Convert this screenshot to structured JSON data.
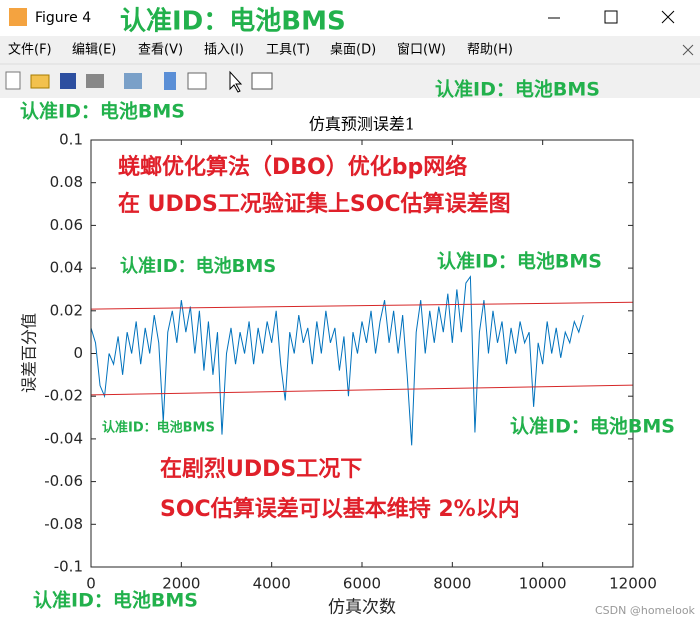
{
  "window": {
    "title": "Figure 4",
    "menus": [
      "文件(F)",
      "编辑(E)",
      "查看(V)",
      "插入(I)",
      "工具(T)",
      "桌面(D)",
      "窗口(W)",
      "帮助(H)"
    ],
    "credit": "CSDN @homelook"
  },
  "watermarks": [
    "认准ID：电池BMS",
    "认准ID：电池BMS",
    "认准ID：电池BMS",
    "认准ID：电池BMS",
    "认准ID：电池BMS",
    "认准ID：电池BMS",
    "认准ID：电池BMS",
    "认准ID：电池BMS"
  ],
  "chart_data": {
    "type": "line",
    "title": "仿真预测误差1",
    "xlabel": "仿真次数",
    "ylabel": "误差百分值",
    "annotations": [
      "蜣螂优化算法（DBO）优化bp网络",
      "在 UDDS工况验证集上SOC估算误差图",
      "在剧烈UDDS工况下",
      "SOC估算误差可以基本维持 2%以内"
    ],
    "xlim": [
      0,
      12000
    ],
    "ylim": [
      -0.1,
      0.1
    ],
    "xticks": [
      0,
      2000,
      4000,
      6000,
      8000,
      10000,
      12000
    ],
    "yticks": [
      -0.1,
      -0.08,
      -0.06,
      -0.04,
      -0.02,
      0,
      0.02,
      0.04,
      0.06,
      0.08,
      0.1
    ],
    "series": [
      {
        "color": "#0072bd",
        "x": [
          0,
          100,
          200,
          300,
          400,
          500,
          600,
          700,
          800,
          900,
          1000,
          1100,
          1200,
          1300,
          1400,
          1500,
          1600,
          1700,
          1800,
          1900,
          2000,
          2100,
          2200,
          2300,
          2400,
          2500,
          2600,
          2700,
          2800,
          2900,
          3000,
          3100,
          3200,
          3300,
          3400,
          3500,
          3600,
          3700,
          3800,
          3900,
          4000,
          4100,
          4200,
          4300,
          4400,
          4500,
          4600,
          4700,
          4800,
          4900,
          5000,
          5100,
          5200,
          5300,
          5400,
          5500,
          5600,
          5700,
          5800,
          5900,
          6000,
          6100,
          6200,
          6300,
          6400,
          6500,
          6600,
          6700,
          6800,
          6900,
          7000,
          7100,
          7200,
          7300,
          7400,
          7500,
          7600,
          7700,
          7800,
          7900,
          8000,
          8100,
          8200,
          8300,
          8400,
          8500,
          8600,
          8700,
          8800,
          8900,
          9000,
          9100,
          9200,
          9300,
          9400,
          9500,
          9600,
          9700,
          9800,
          9900,
          10000,
          10100,
          10200,
          10300,
          10400,
          10500,
          10600,
          10700,
          10800,
          10900
        ],
        "values": [
          0.012,
          0.005,
          -0.015,
          -0.02,
          0.0,
          -0.005,
          0.008,
          -0.01,
          0.01,
          0.0,
          0.015,
          -0.005,
          0.012,
          0.0,
          0.018,
          0.005,
          -0.032,
          0.01,
          0.02,
          0.005,
          0.025,
          0.01,
          0.022,
          0.0,
          0.02,
          -0.008,
          0.015,
          -0.01,
          0.01,
          -0.038,
          0.0,
          0.012,
          -0.005,
          0.01,
          0.0,
          0.015,
          -0.005,
          0.012,
          0.0,
          0.015,
          0.005,
          0.02,
          -0.005,
          -0.022,
          0.01,
          0.0,
          0.018,
          0.005,
          0.012,
          -0.005,
          0.015,
          0.0,
          0.02,
          0.005,
          0.012,
          -0.008,
          0.008,
          -0.02,
          0.01,
          0.0,
          0.015,
          0.005,
          0.02,
          0.0,
          0.015,
          0.025,
          0.005,
          0.02,
          0.0,
          0.018,
          -0.01,
          -0.043,
          0.01,
          0.025,
          0.0,
          0.02,
          0.005,
          0.022,
          0.01,
          0.028,
          0.005,
          0.03,
          0.01,
          0.033,
          0.036,
          -0.037,
          0.01,
          0.025,
          0.0,
          0.02,
          0.005,
          0.015,
          -0.005,
          0.012,
          0.0,
          0.015,
          0.005,
          0.01,
          -0.025,
          0.005,
          -0.005,
          0.015,
          0.0,
          0.012,
          -0.002,
          0.01,
          0.005,
          0.015,
          0.01,
          0.018
        ]
      },
      {
        "color": "#d62728",
        "x": [
          0,
          12000
        ],
        "values": [
          0.0208,
          0.024
        ]
      },
      {
        "color": "#d62728",
        "x": [
          0,
          12000
        ],
        "values": [
          -0.0194,
          -0.0148
        ]
      }
    ]
  }
}
